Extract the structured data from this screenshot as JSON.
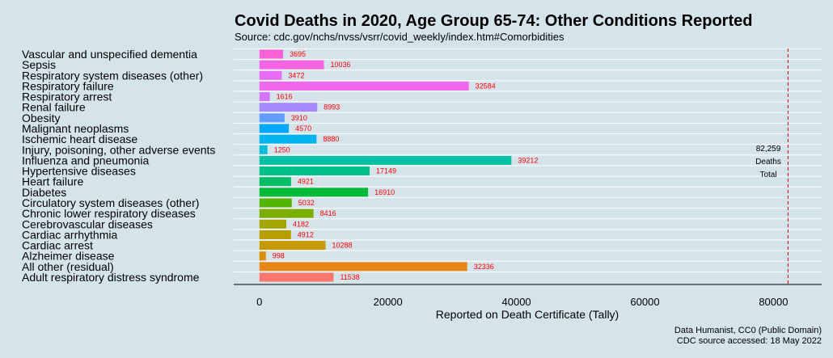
{
  "chart_data": {
    "type": "bar",
    "orientation": "horizontal",
    "title": "Covid Deaths in 2020, Age Group 65-74: Other Conditions Reported",
    "subtitle": "Source: cdc.gov/nchs/nvss/vsrr/covid_weekly/index.htm#Comorbidities",
    "xlabel": "Reported on Death Certificate (Tally)",
    "ylabel": "",
    "xlim": [
      -4000,
      87500
    ],
    "xticks": [
      0,
      20000,
      40000,
      60000,
      80000
    ],
    "xtick_labels": [
      "0",
      "20000",
      "40000",
      "60000",
      "80000"
    ],
    "categories": [
      "Vascular and unspecified dementia",
      "Sepsis",
      "Respiratory system diseases (other)",
      "Respiratory failure",
      "Respiratory arrest",
      "Renal failure",
      "Obesity",
      "Malignant neoplasms",
      "Ischemic heart disease",
      "Injury, poisoning, other adverse events",
      "Influenza and pneumonia",
      "Hypertensive diseases",
      "Heart failure",
      "Diabetes",
      "Circulatory system diseases (other)",
      "Chronic lower respiratory diseases",
      "Cerebrovascular diseases",
      "Cardiac arrhythmia",
      "Cardiac arrest",
      "Alzheimer disease",
      "All other (residual)",
      "Adult respiratory distress syndrome"
    ],
    "values": [
      3695,
      10036,
      3472,
      32584,
      1616,
      8993,
      3910,
      4570,
      8880,
      1250,
      39212,
      17149,
      4921,
      16910,
      5032,
      8416,
      4182,
      4912,
      10288,
      998,
      32336,
      11538
    ],
    "colors": [
      "#fb61d7",
      "#f564e3",
      "#e76bf3",
      "#ef67eb",
      "#d575fe",
      "#a58aff",
      "#619cff",
      "#00a9ff",
      "#00b4f0",
      "#00bcd8",
      "#00c1a3",
      "#00c08b",
      "#00be67",
      "#00ba38",
      "#53b400",
      "#7cae00",
      "#a3a500",
      "#b79f00",
      "#c49a00",
      "#de8c00",
      "#e68613",
      "#f8766d"
    ],
    "label_color": "#ff0000",
    "reference_line": {
      "value": 82259,
      "color": "#cc0000",
      "style": "dashed"
    },
    "annotation": [
      "82,259",
      "Deaths",
      "Total"
    ],
    "grid": true
  },
  "credits": [
    "Data Humanist, CC0 (Public Domain)",
    "CDC source accessed: 18 May 2022"
  ]
}
